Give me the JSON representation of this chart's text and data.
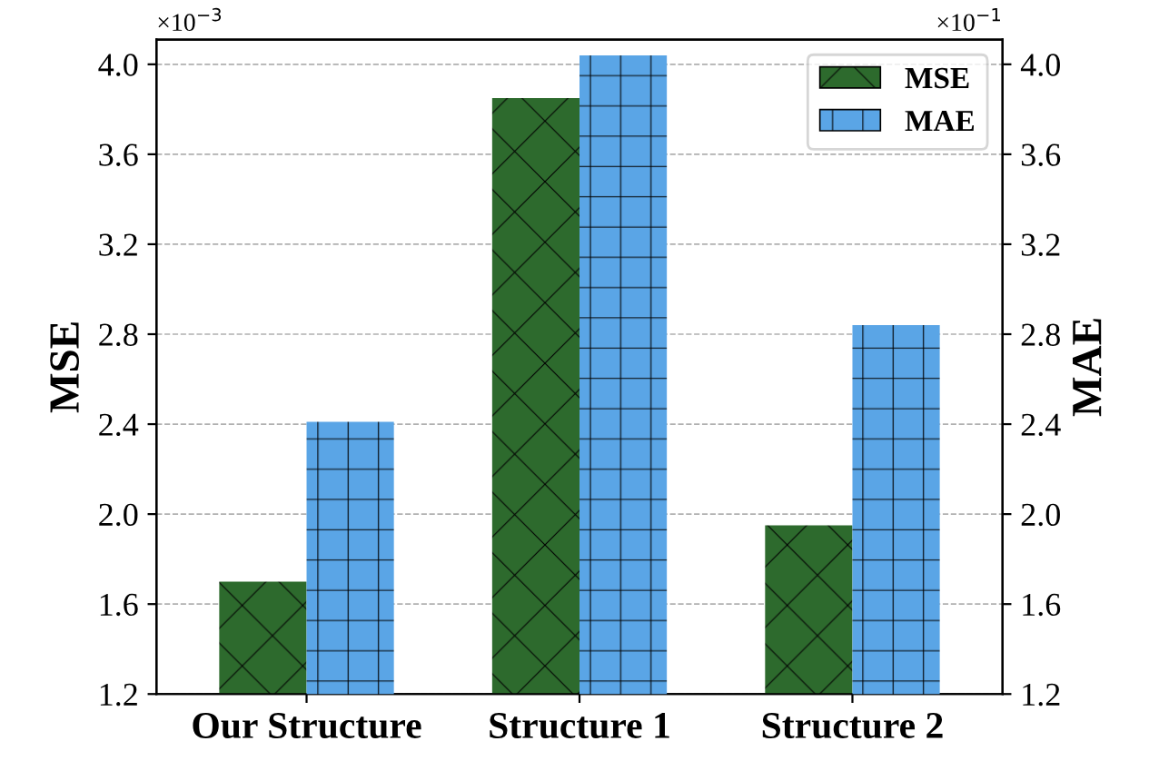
{
  "chart_data": {
    "type": "bar",
    "categories": [
      "Our Structure",
      "Structure 1",
      "Structure 2"
    ],
    "series": [
      {
        "name": "MSE",
        "color": "#2d6a2d",
        "values": [
          1.7,
          3.85,
          1.95
        ],
        "axis": "y"
      },
      {
        "name": "MAE",
        "color": "#5aa5e6",
        "values": [
          2.41,
          4.04,
          2.84
        ],
        "axis": "y2"
      }
    ],
    "ylabel": "MSE",
    "y2label": "MAE",
    "ylim": [
      1.2,
      4.11
    ],
    "yticks": [
      1.2,
      1.6,
      {
        "value": 2,
        "label": "2.0"
      },
      2.4,
      2.8,
      3.2,
      3.6,
      {
        "value": 4,
        "label": "4.0"
      }
    ],
    "y2lim": [
      1.2,
      4.11
    ],
    "y2ticks": [
      1.2,
      1.6,
      {
        "value": 2,
        "label": "2.0"
      },
      2.4,
      2.8,
      3.2,
      3.6,
      {
        "value": 4,
        "label": "4.0"
      }
    ],
    "annotations": [
      "×10$^{−3}$",
      "×10$^{−1}$"
    ],
    "grid": "y",
    "legend": "top right"
  }
}
